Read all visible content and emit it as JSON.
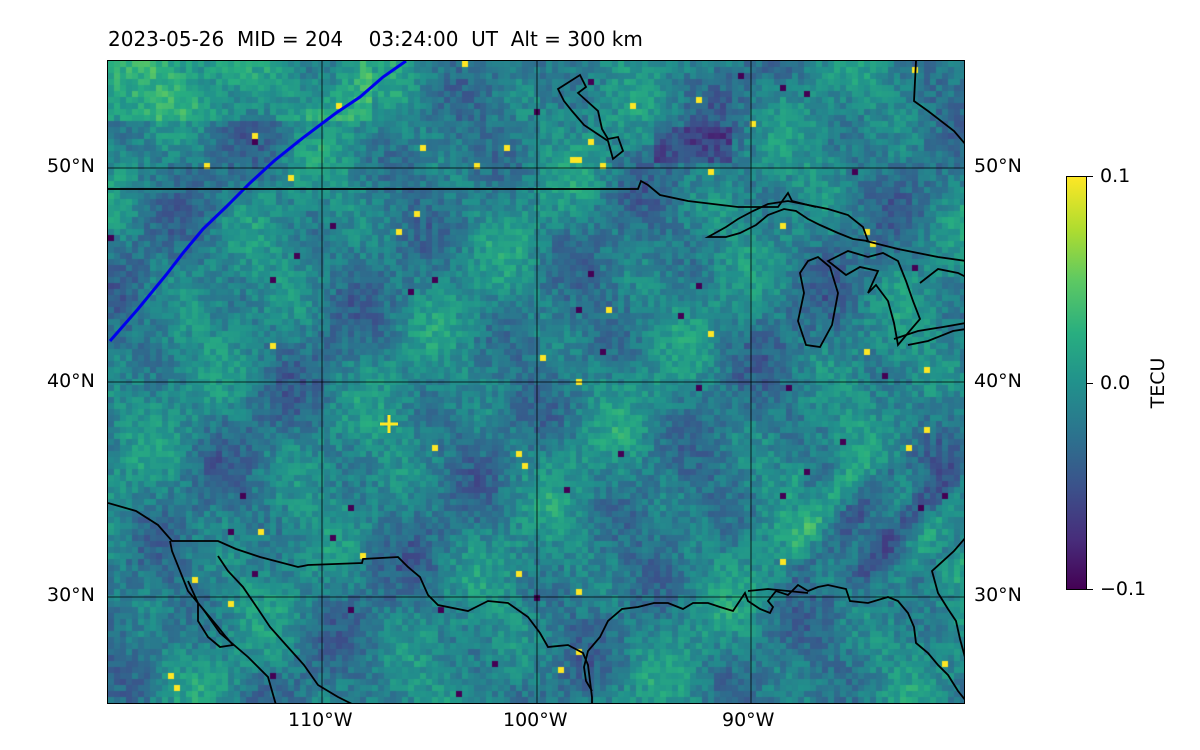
{
  "title": {
    "date": "2023-05-26",
    "mid": "MID = 204",
    "time": "03:24:00  UT",
    "alt": "Alt = 300 km"
  },
  "map": {
    "lon_range": [
      -120,
      -80
    ],
    "lat_range": [
      25,
      55
    ],
    "lon_ticks": [
      "110°W",
      "100°W",
      "90°W"
    ],
    "lat_ticks": [
      "50°N",
      "40°N",
      "30°N"
    ],
    "terminator_color": "#0000ee",
    "coastline_color": "#000000",
    "colormap": "viridis"
  },
  "colorbar": {
    "label": "TECU",
    "max_label": "0.1",
    "mid_label": "0.0",
    "min_label": "−0.1",
    "range": [
      -0.1,
      0.1
    ]
  }
}
